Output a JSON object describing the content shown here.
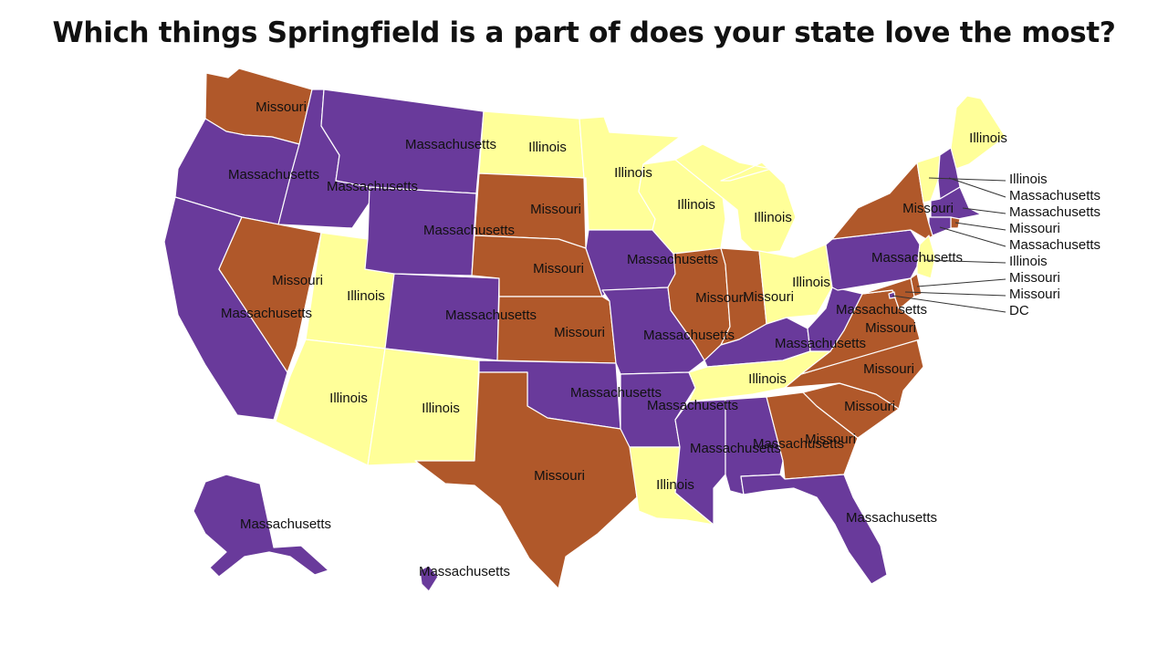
{
  "title": "Which things Springfield is a part of does your state love the most?",
  "colors": {
    "Massachusetts": "#693a9b",
    "Missouri": "#b0582a",
    "Illinois": "#ffff99"
  },
  "states": {
    "WA": "Missouri",
    "OR": "Massachusetts",
    "CA": "Massachusetts",
    "ID": "Massachusetts",
    "NV": "Missouri",
    "UT": "Illinois",
    "AZ": "Illinois",
    "MT": "Massachusetts",
    "WY": "Massachusetts",
    "CO": "Massachusetts",
    "NM": "Illinois",
    "ND": "Illinois",
    "SD": "Missouri",
    "NE": "Missouri",
    "KS": "Missouri",
    "OK": "Massachusetts",
    "TX": "Missouri",
    "MN": "Illinois",
    "IA": "Massachusetts",
    "MO": "Massachusetts",
    "AR": "Massachusetts",
    "LA": "Illinois",
    "WI": "Illinois",
    "MI": "Illinois",
    "IL": "Missouri",
    "IN": "Missouri",
    "OH": "Illinois",
    "KY": "Massachusetts",
    "TN": "Illinois",
    "MS": "Massachusetts",
    "AL": "Massachusetts",
    "GA": "Missouri",
    "FL": "Massachusetts",
    "SC": "Missouri",
    "NC": "Missouri",
    "VA": "Missouri",
    "WV": "Massachusetts",
    "PA": "Massachusetts",
    "NY": "Missouri",
    "ME": "Illinois",
    "VT": "Illinois",
    "NH": "Massachusetts",
    "MA": "Massachusetts",
    "RI": "Missouri",
    "CT": "Massachusetts",
    "NJ": "Illinois",
    "DE": "Missouri",
    "MD": "Missouri",
    "DC": "Massachusetts",
    "AK": "Massachusetts",
    "HI": "Massachusetts"
  },
  "callouts": {
    "VT": "Illinois",
    "NH": "Massachusetts",
    "MA": "Massachusetts",
    "RI": "Missouri",
    "CT": "Massachusetts",
    "NJ": "Illinois",
    "DE": "Missouri",
    "MD": "Missouri",
    "DC": "DC"
  }
}
